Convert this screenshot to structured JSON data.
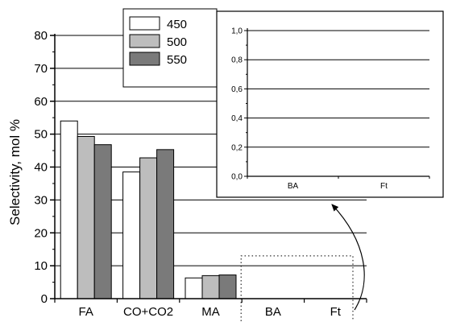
{
  "chart_data": {
    "type": "bar",
    "categories": [
      "FA",
      "CO+CO2",
      "MA",
      "BA",
      "Ft"
    ],
    "series": [
      {
        "name": "450",
        "values": [
          54,
          38.5,
          6.3,
          null,
          null
        ],
        "color": "#ffffff"
      },
      {
        "name": "500",
        "values": [
          49.3,
          42.8,
          7,
          null,
          null
        ],
        "color": "#bdbdbd"
      },
      {
        "name": "550",
        "values": [
          46.8,
          45.3,
          7.2,
          null,
          null
        ],
        "color": "#7a7a7a"
      }
    ],
    "xlabel": "",
    "ylabel": "Selectivity, mol %",
    "ylim": [
      0,
      80
    ],
    "yticks": [
      "0",
      "10",
      "20",
      "30",
      "40",
      "50",
      "60",
      "70",
      "80"
    ],
    "grid": true,
    "legend": {
      "position": "top-center",
      "entries": [
        "450",
        "500",
        "550"
      ]
    },
    "inset": {
      "categories": [
        "BA",
        "Ft"
      ],
      "ylim": [
        0,
        1.0
      ],
      "yticks": [
        "0,0",
        "0,2",
        "0,4",
        "0,6",
        "0,8",
        "1,0"
      ],
      "grid": true,
      "zoom_region": {
        "categories": [
          "BA",
          "Ft"
        ],
        "ylim": [
          0,
          13
        ]
      }
    }
  }
}
